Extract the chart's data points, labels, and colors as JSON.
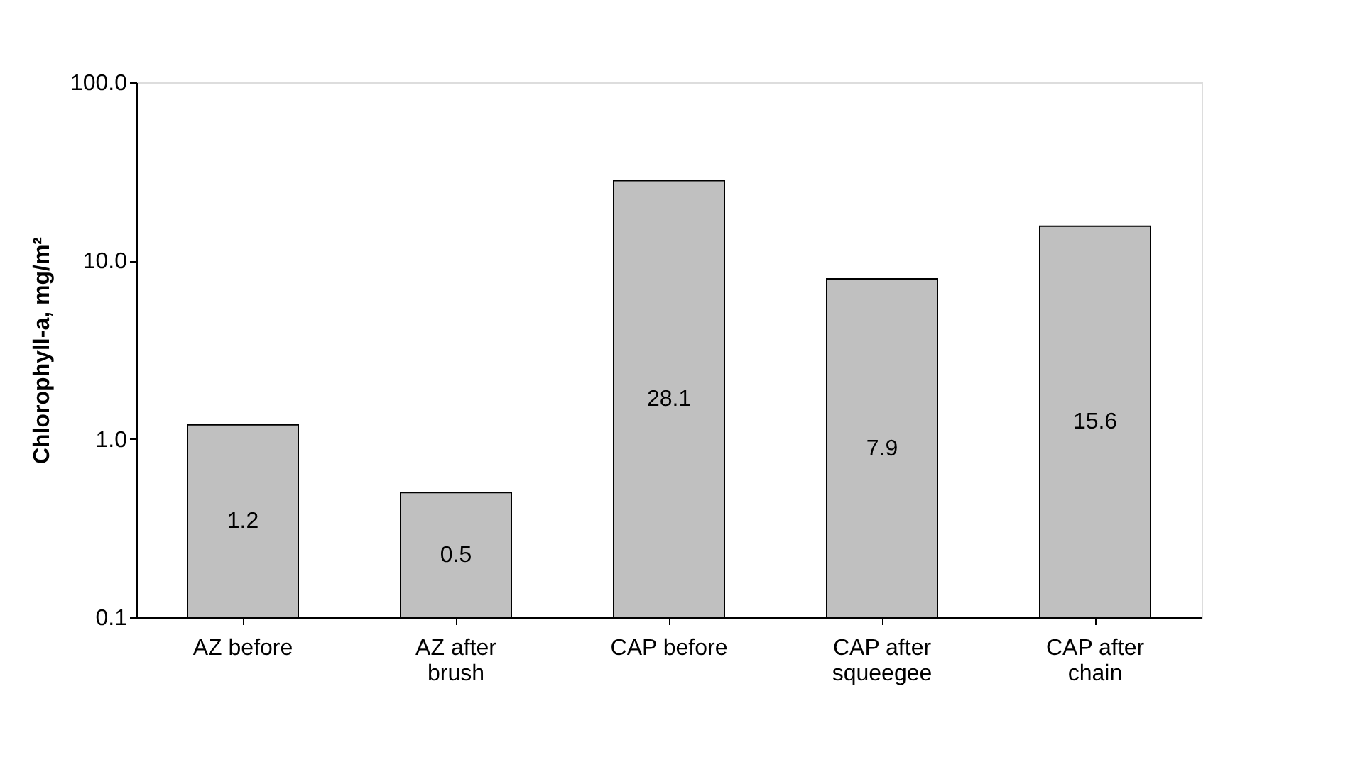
{
  "chart_data": {
    "type": "bar",
    "categories": [
      "AZ before",
      "AZ after\nbrush",
      "CAP before",
      "CAP after\nsqueegee",
      "CAP after\nchain"
    ],
    "values": [
      1.2,
      0.5,
      28.1,
      7.9,
      15.6
    ],
    "color": "#c0c0c0",
    "ylabel": "Chlorophyll-a, mg/m²",
    "log": "y",
    "ylim": [
      0.1,
      100
    ],
    "yticks": [
      {
        "value": 0.1,
        "label": "0.1"
      },
      {
        "value": 1,
        "label": "1.0"
      },
      {
        "value": 10,
        "label": "10.0"
      },
      {
        "value": 100,
        "label": "100.0"
      }
    ],
    "data_labels": true,
    "grid": false
  }
}
